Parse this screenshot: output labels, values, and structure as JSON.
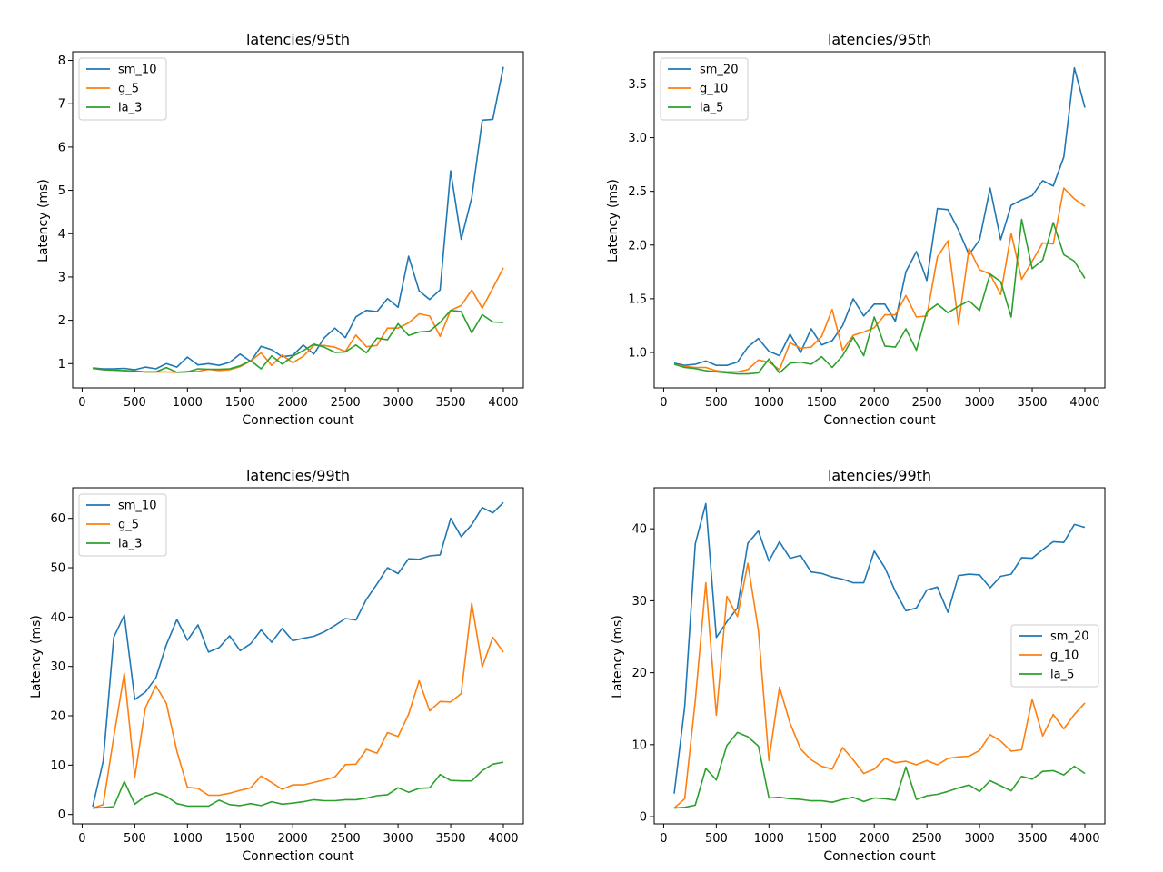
{
  "colors": {
    "series": [
      "#1f77b4",
      "#ff7f0e",
      "#2ca02c"
    ],
    "frame": "#000000",
    "background": "#ffffff",
    "legend_border": "#cccccc"
  },
  "chart_data": [
    {
      "type": "line",
      "title": "latencies/95th",
      "xlabel": "Connection count",
      "ylabel": "Latency (ms)",
      "xlim": [
        -90,
        4190
      ],
      "ylim": [
        0.44,
        8.2
      ],
      "xticks": [
        0,
        500,
        1000,
        1500,
        2000,
        2500,
        3000,
        3500,
        4000
      ],
      "yticks": [
        1,
        2,
        3,
        4,
        5,
        6,
        7,
        8
      ],
      "grid": false,
      "legend_position": "upper-left",
      "x": [
        100,
        200,
        300,
        400,
        500,
        600,
        700,
        800,
        900,
        1000,
        1100,
        1200,
        1300,
        1400,
        1500,
        1600,
        1700,
        1800,
        1900,
        2000,
        2100,
        2200,
        2300,
        2400,
        2500,
        2600,
        2700,
        2800,
        2900,
        3000,
        3100,
        3200,
        3300,
        3400,
        3500,
        3600,
        3700,
        3800,
        3900,
        4000
      ],
      "series": [
        {
          "name": "sm_10",
          "values": [
            0.9,
            0.88,
            0.88,
            0.89,
            0.86,
            0.92,
            0.88,
            1.0,
            0.92,
            1.15,
            0.97,
            1.0,
            0.96,
            1.03,
            1.22,
            1.05,
            1.4,
            1.32,
            1.16,
            1.19,
            1.43,
            1.22,
            1.6,
            1.82,
            1.6,
            2.08,
            2.23,
            2.2,
            2.5,
            2.3,
            3.48,
            2.68,
            2.48,
            2.7,
            5.45,
            3.87,
            4.83,
            6.62,
            6.64,
            7.85
          ]
        },
        {
          "name": "g_5",
          "values": [
            0.89,
            0.86,
            0.85,
            0.84,
            0.82,
            0.81,
            0.81,
            0.81,
            0.8,
            0.82,
            0.82,
            0.87,
            0.84,
            0.86,
            0.93,
            1.06,
            1.25,
            0.96,
            1.2,
            1.02,
            1.17,
            1.42,
            1.42,
            1.38,
            1.28,
            1.66,
            1.39,
            1.42,
            1.82,
            1.82,
            1.94,
            2.15,
            2.1,
            1.63,
            2.23,
            2.34,
            2.7,
            2.28,
            2.74,
            3.21
          ]
        },
        {
          "name": "la_3",
          "values": [
            0.89,
            0.86,
            0.85,
            0.84,
            0.83,
            0.81,
            0.81,
            0.91,
            0.8,
            0.81,
            0.88,
            0.87,
            0.87,
            0.88,
            0.95,
            1.07,
            0.88,
            1.18,
            0.99,
            1.17,
            1.3,
            1.45,
            1.38,
            1.26,
            1.27,
            1.43,
            1.25,
            1.59,
            1.55,
            1.92,
            1.65,
            1.73,
            1.75,
            1.95,
            2.23,
            2.2,
            1.71,
            2.13,
            1.96,
            1.95
          ]
        }
      ]
    },
    {
      "type": "line",
      "title": "latencies/95th",
      "xlabel": "Connection count",
      "ylabel": "Latency (ms)",
      "xlim": [
        -90,
        4190
      ],
      "ylim": [
        0.67,
        3.8
      ],
      "xticks": [
        0,
        500,
        1000,
        1500,
        2000,
        2500,
        3000,
        3500,
        4000
      ],
      "yticks": [
        1.0,
        1.5,
        2.0,
        2.5,
        3.0,
        3.5
      ],
      "ytick_labels": [
        "1.0",
        "1.5",
        "2.0",
        "2.5",
        "3.0",
        "3.5"
      ],
      "grid": false,
      "legend_position": "upper-left",
      "x": [
        100,
        200,
        300,
        400,
        500,
        600,
        700,
        800,
        900,
        1000,
        1100,
        1200,
        1300,
        1400,
        1500,
        1600,
        1700,
        1800,
        1900,
        2000,
        2100,
        2200,
        2300,
        2400,
        2500,
        2600,
        2700,
        2800,
        2900,
        3000,
        3100,
        3200,
        3300,
        3400,
        3500,
        3600,
        3700,
        3800,
        3900,
        4000
      ],
      "series": [
        {
          "name": "sm_20",
          "values": [
            0.9,
            0.88,
            0.89,
            0.92,
            0.88,
            0.88,
            0.91,
            1.05,
            1.13,
            1.01,
            0.97,
            1.17,
            1.0,
            1.22,
            1.07,
            1.11,
            1.25,
            1.5,
            1.34,
            1.45,
            1.45,
            1.29,
            1.75,
            1.94,
            1.67,
            2.34,
            2.33,
            2.14,
            1.91,
            2.05,
            2.53,
            2.05,
            2.37,
            2.42,
            2.46,
            2.6,
            2.55,
            2.82,
            3.65,
            3.28
          ]
        },
        {
          "name": "g_10",
          "values": [
            0.89,
            0.87,
            0.86,
            0.86,
            0.83,
            0.82,
            0.82,
            0.84,
            0.93,
            0.91,
            0.84,
            1.09,
            1.04,
            1.05,
            1.15,
            1.4,
            1.02,
            1.16,
            1.19,
            1.23,
            1.35,
            1.35,
            1.53,
            1.33,
            1.34,
            1.89,
            2.04,
            1.26,
            1.97,
            1.77,
            1.73,
            1.54,
            2.11,
            1.68,
            1.85,
            2.02,
            2.01,
            2.53,
            2.43,
            2.36
          ]
        },
        {
          "name": "la_5",
          "values": [
            0.89,
            0.86,
            0.85,
            0.83,
            0.82,
            0.81,
            0.8,
            0.8,
            0.81,
            0.94,
            0.81,
            0.9,
            0.91,
            0.89,
            0.96,
            0.86,
            0.97,
            1.14,
            0.97,
            1.33,
            1.06,
            1.05,
            1.22,
            1.02,
            1.38,
            1.45,
            1.37,
            1.43,
            1.48,
            1.39,
            1.73,
            1.66,
            1.33,
            2.24,
            1.78,
            1.86,
            2.21,
            1.91,
            1.85,
            1.69
          ]
        }
      ]
    },
    {
      "type": "line",
      "title": "latencies/99th",
      "xlabel": "Connection count",
      "ylabel": "Latency (ms)",
      "xlim": [
        -90,
        4190
      ],
      "ylim": [
        -1.9,
        66.2
      ],
      "xticks": [
        0,
        500,
        1000,
        1500,
        2000,
        2500,
        3000,
        3500,
        4000
      ],
      "yticks": [
        0,
        10,
        20,
        30,
        40,
        50,
        60
      ],
      "grid": false,
      "legend_position": "upper-left",
      "x": [
        100,
        200,
        300,
        400,
        500,
        600,
        700,
        800,
        900,
        1000,
        1100,
        1200,
        1300,
        1400,
        1500,
        1600,
        1700,
        1800,
        1900,
        2000,
        2100,
        2200,
        2300,
        2400,
        2500,
        2600,
        2700,
        2800,
        2900,
        3000,
        3100,
        3200,
        3300,
        3400,
        3500,
        3600,
        3700,
        3800,
        3900,
        4000
      ],
      "series": [
        {
          "name": "sm_10",
          "values": [
            1.6,
            10.8,
            35.9,
            40.4,
            23.3,
            24.8,
            27.7,
            34.4,
            39.5,
            35.3,
            38.4,
            32.9,
            33.8,
            36.2,
            33.2,
            34.6,
            37.4,
            34.9,
            37.7,
            35.2,
            35.7,
            36.1,
            37.0,
            38.3,
            39.7,
            39.4,
            43.6,
            46.7,
            50.0,
            48.8,
            51.8,
            51.7,
            52.4,
            52.6,
            60.0,
            56.3,
            58.7,
            62.2,
            61.1,
            63.2
          ]
        },
        {
          "name": "g_5",
          "values": [
            1.3,
            2.0,
            15.7,
            28.6,
            7.6,
            21.6,
            26.1,
            22.5,
            12.8,
            5.5,
            5.3,
            3.9,
            3.9,
            4.3,
            4.9,
            5.4,
            7.8,
            6.5,
            5.1,
            6.0,
            6.0,
            6.5,
            7.0,
            7.6,
            10.1,
            10.2,
            13.2,
            12.4,
            16.6,
            15.8,
            20.3,
            27.1,
            21.0,
            22.9,
            22.8,
            24.5,
            42.8,
            29.9,
            35.9,
            32.9
          ]
        },
        {
          "name": "la_3",
          "values": [
            1.3,
            1.4,
            1.6,
            6.7,
            2.1,
            3.7,
            4.4,
            3.7,
            2.2,
            1.7,
            1.7,
            1.7,
            2.9,
            2.0,
            1.8,
            2.2,
            1.8,
            2.6,
            2.1,
            2.3,
            2.6,
            3.0,
            2.8,
            2.8,
            3.0,
            3.0,
            3.3,
            3.8,
            4.0,
            5.4,
            4.5,
            5.3,
            5.4,
            8.1,
            6.9,
            6.8,
            6.8,
            8.9,
            10.2,
            10.6
          ]
        }
      ]
    },
    {
      "type": "line",
      "title": "latencies/99th",
      "xlabel": "Connection count",
      "ylabel": "Latency (ms)",
      "xlim": [
        -90,
        4190
      ],
      "ylim": [
        -1.0,
        45.7
      ],
      "xticks": [
        0,
        500,
        1000,
        1500,
        2000,
        2500,
        3000,
        3500,
        4000
      ],
      "yticks": [
        0,
        10,
        20,
        30,
        40
      ],
      "grid": false,
      "legend_position": "center-right",
      "x": [
        100,
        200,
        300,
        400,
        500,
        600,
        700,
        800,
        900,
        1000,
        1100,
        1200,
        1300,
        1400,
        1500,
        1600,
        1700,
        1800,
        1900,
        2000,
        2100,
        2200,
        2300,
        2400,
        2500,
        2600,
        2700,
        2800,
        2900,
        3000,
        3100,
        3200,
        3300,
        3400,
        3500,
        3600,
        3700,
        3800,
        3900,
        4000
      ],
      "series": [
        {
          "name": "sm_20",
          "values": [
            3.2,
            15.3,
            37.9,
            43.5,
            24.9,
            27.1,
            29.0,
            38.0,
            39.7,
            35.5,
            38.2,
            35.9,
            36.3,
            34.0,
            33.8,
            33.3,
            33.0,
            32.5,
            32.5,
            36.9,
            34.6,
            31.3,
            28.6,
            29.0,
            31.5,
            31.9,
            28.4,
            33.5,
            33.7,
            33.6,
            31.8,
            33.4,
            33.7,
            36.0,
            35.9,
            37.1,
            38.2,
            38.1,
            40.6,
            40.2
          ]
        },
        {
          "name": "g_10",
          "values": [
            1.2,
            2.5,
            16.1,
            32.5,
            14.1,
            30.6,
            27.8,
            35.2,
            25.9,
            7.8,
            18.0,
            13.0,
            9.4,
            7.9,
            7.0,
            6.6,
            9.6,
            7.9,
            6.0,
            6.6,
            8.1,
            7.5,
            7.7,
            7.2,
            7.8,
            7.2,
            8.1,
            8.3,
            8.4,
            9.2,
            11.4,
            10.5,
            9.1,
            9.3,
            16.3,
            11.2,
            14.2,
            12.2,
            14.2,
            15.8
          ]
        },
        {
          "name": "la_5",
          "values": [
            1.2,
            1.3,
            1.6,
            6.7,
            5.1,
            9.9,
            11.7,
            11.1,
            9.8,
            2.6,
            2.7,
            2.5,
            2.4,
            2.2,
            2.2,
            2.0,
            2.4,
            2.7,
            2.1,
            2.6,
            2.5,
            2.3,
            6.9,
            2.4,
            2.9,
            3.1,
            3.5,
            4.0,
            4.4,
            3.5,
            5.0,
            4.3,
            3.6,
            5.6,
            5.2,
            6.3,
            6.4,
            5.8,
            7.0,
            6.0
          ]
        }
      ]
    }
  ]
}
